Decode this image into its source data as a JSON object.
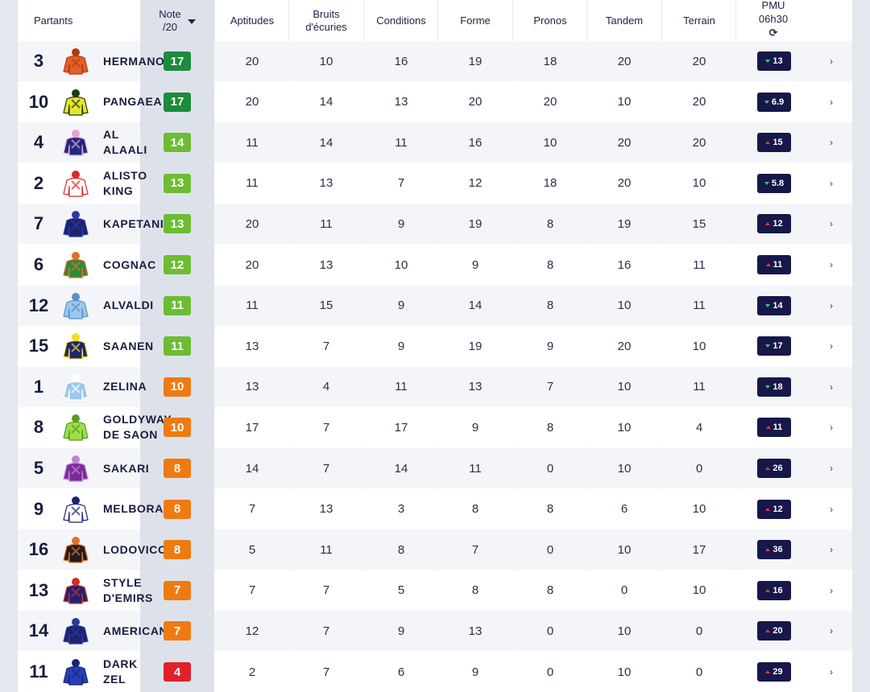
{
  "header": {
    "partants": "Partants",
    "note_line1": "Note",
    "note_line2": "/20",
    "aptitudes": "Aptitudes",
    "bruits_line1": "Bruits",
    "bruits_line2": "d'écuries",
    "conditions": "Conditions",
    "forme": "Forme",
    "pronos": "Pronos",
    "tandem": "Tandem",
    "terrain": "Terrain",
    "pmu_line1": "PMU",
    "pmu_line2": "06h30",
    "refresh_glyph": "⟳"
  },
  "colors": {
    "note_dark_green": "#1e8a3c",
    "note_green": "#6cbd32",
    "note_orange": "#f07a12",
    "note_red": "#e0212b",
    "odds_bg": "#17174a",
    "arrow_up": "#e0354b",
    "arrow_down": "#2ecc71"
  },
  "rows": [
    {
      "num": "3",
      "name_l1": "HERMANO",
      "name_l2": "",
      "note": "17",
      "note_color": "#1e8a3c",
      "aptitudes": "20",
      "bruits": "10",
      "conditions": "16",
      "forme": "19",
      "pronos": "18",
      "tandem": "20",
      "terrain": "20",
      "odds": "13",
      "trend": "down",
      "chevron": "›",
      "silk": "orange-check"
    },
    {
      "num": "10",
      "name_l1": "PANGAEA",
      "name_l2": "",
      "note": "17",
      "note_color": "#1e8a3c",
      "aptitudes": "20",
      "bruits": "14",
      "conditions": "13",
      "forme": "20",
      "pronos": "20",
      "tandem": "10",
      "terrain": "20",
      "odds": "6.9",
      "trend": "down",
      "chevron": "›",
      "silk": "yellow-cross"
    },
    {
      "num": "4",
      "name_l1": "AL",
      "name_l2": "ALAALI",
      "note": "14",
      "note_color": "#6cbd32",
      "aptitudes": "11",
      "bruits": "14",
      "conditions": "11",
      "forme": "16",
      "pronos": "10",
      "tandem": "20",
      "terrain": "20",
      "odds": "15",
      "trend": "up",
      "chevron": "›",
      "silk": "navy-pink"
    },
    {
      "num": "2",
      "name_l1": "ALISTO",
      "name_l2": "KING",
      "note": "13",
      "note_color": "#6cbd32",
      "aptitudes": "11",
      "bruits": "13",
      "conditions": "7",
      "forme": "12",
      "pronos": "18",
      "tandem": "20",
      "terrain": "10",
      "odds": "5.8",
      "trend": "down",
      "chevron": "›",
      "silk": "red-stripes"
    },
    {
      "num": "7",
      "name_l1": "KAPETANI",
      "name_l2": "",
      "note": "13",
      "note_color": "#6cbd32",
      "aptitudes": "20",
      "bruits": "11",
      "conditions": "9",
      "forme": "19",
      "pronos": "8",
      "tandem": "19",
      "terrain": "15",
      "odds": "12",
      "trend": "up",
      "chevron": "›",
      "silk": "navy"
    },
    {
      "num": "6",
      "name_l1": "COGNAC",
      "name_l2": "",
      "note": "12",
      "note_color": "#6cbd32",
      "aptitudes": "20",
      "bruits": "13",
      "conditions": "10",
      "forme": "9",
      "pronos": "8",
      "tandem": "16",
      "terrain": "11",
      "odds": "11",
      "trend": "up",
      "chevron": "›",
      "silk": "green-orange"
    },
    {
      "num": "12",
      "name_l1": "ALVALDI",
      "name_l2": "",
      "note": "11",
      "note_color": "#6cbd32",
      "aptitudes": "11",
      "bruits": "15",
      "conditions": "9",
      "forme": "14",
      "pronos": "8",
      "tandem": "10",
      "terrain": "11",
      "odds": "14",
      "trend": "down",
      "chevron": "›",
      "silk": "light-blue"
    },
    {
      "num": "15",
      "name_l1": "SAANEN",
      "name_l2": "",
      "note": "11",
      "note_color": "#6cbd32",
      "aptitudes": "13",
      "bruits": "7",
      "conditions": "9",
      "forme": "19",
      "pronos": "9",
      "tandem": "20",
      "terrain": "10",
      "odds": "17",
      "trend": "down",
      "chevron": "›",
      "silk": "navy-yellow"
    },
    {
      "num": "1",
      "name_l1": "ZELINA",
      "name_l2": "",
      "note": "10",
      "note_color": "#f07a12",
      "aptitudes": "13",
      "bruits": "4",
      "conditions": "11",
      "forme": "13",
      "pronos": "7",
      "tandem": "10",
      "terrain": "11",
      "odds": "18",
      "trend": "down",
      "chevron": "›",
      "silk": "light-blue-white"
    },
    {
      "num": "8",
      "name_l1": "GOLDYWAY",
      "name_l2": "DE SAON",
      "note": "10",
      "note_color": "#f07a12",
      "aptitudes": "17",
      "bruits": "7",
      "conditions": "17",
      "forme": "9",
      "pronos": "8",
      "tandem": "10",
      "terrain": "4",
      "odds": "11",
      "trend": "up",
      "chevron": "›",
      "silk": "lime"
    },
    {
      "num": "5",
      "name_l1": "SAKARI",
      "name_l2": "",
      "note": "8",
      "note_color": "#f07a12",
      "aptitudes": "14",
      "bruits": "7",
      "conditions": "14",
      "forme": "11",
      "pronos": "0",
      "tandem": "10",
      "terrain": "0",
      "odds": "26",
      "trend": "up",
      "chevron": "›",
      "silk": "purple"
    },
    {
      "num": "9",
      "name_l1": "MELBORA",
      "name_l2": "",
      "note": "8",
      "note_color": "#f07a12",
      "aptitudes": "7",
      "bruits": "13",
      "conditions": "3",
      "forme": "8",
      "pronos": "8",
      "tandem": "6",
      "terrain": "10",
      "odds": "12",
      "trend": "up",
      "chevron": "›",
      "silk": "navy-white-check"
    },
    {
      "num": "16",
      "name_l1": "LODOVICO",
      "name_l2": "",
      "note": "8",
      "note_color": "#f07a12",
      "aptitudes": "5",
      "bruits": "11",
      "conditions": "8",
      "forme": "7",
      "pronos": "0",
      "tandem": "10",
      "terrain": "17",
      "odds": "36",
      "trend": "up",
      "chevron": "›",
      "silk": "black-orange"
    },
    {
      "num": "13",
      "name_l1": "STYLE",
      "name_l2": "D'EMIRS",
      "note": "7",
      "note_color": "#f07a12",
      "aptitudes": "7",
      "bruits": "7",
      "conditions": "5",
      "forme": "8",
      "pronos": "8",
      "tandem": "0",
      "terrain": "10",
      "odds": "16",
      "trend": "up",
      "chevron": "›",
      "silk": "navy-red-diamond"
    },
    {
      "num": "14",
      "name_l1": "AMERICAN",
      "name_l2": "",
      "note": "7",
      "note_color": "#f07a12",
      "aptitudes": "12",
      "bruits": "7",
      "conditions": "9",
      "forme": "13",
      "pronos": "0",
      "tandem": "10",
      "terrain": "0",
      "odds": "20",
      "trend": "up",
      "chevron": "›",
      "silk": "navy"
    },
    {
      "num": "11",
      "name_l1": "DARK",
      "name_l2": "ZEL",
      "note": "4",
      "note_color": "#e0212b",
      "aptitudes": "2",
      "bruits": "7",
      "conditions": "6",
      "forme": "9",
      "pronos": "0",
      "tandem": "10",
      "terrain": "0",
      "odds": "29",
      "trend": "up",
      "chevron": "›",
      "silk": "royal-blue"
    }
  ]
}
